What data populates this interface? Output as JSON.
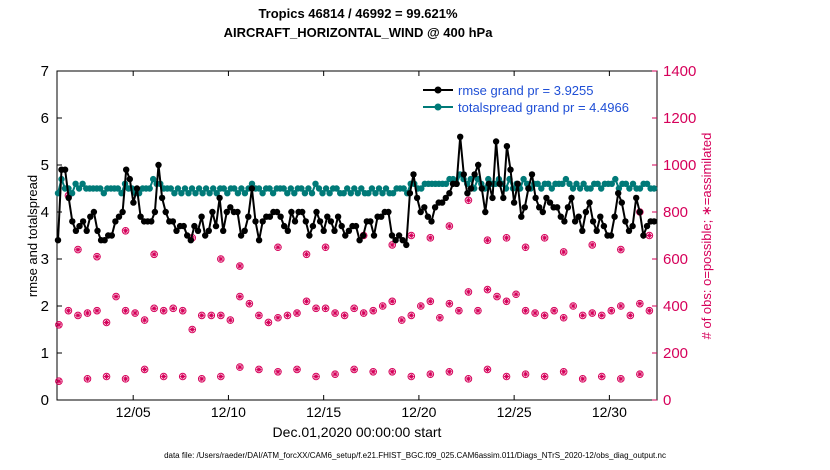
{
  "chart_data": {
    "type": "line",
    "title": "Tropics 46814 / 46992 = 99.621%",
    "subtitle": "AIRCRAFT_HORIZONTAL_WIND @ 400 hPa",
    "xlabel": "Dec.01,2020 00:00:00 start",
    "ylabel": "rmse and totalspread",
    "ylabel_right": "# of obs: o=possible; ∗=assimilated",
    "xlim": [
      1,
      32.5
    ],
    "ylim": [
      0,
      7
    ],
    "ylim_right": [
      0,
      1400
    ],
    "x_ticks": [
      5,
      10,
      15,
      20,
      25,
      30
    ],
    "x_tick_labels": [
      "12/05",
      "12/10",
      "12/15",
      "12/20",
      "12/25",
      "12/30"
    ],
    "y_ticks": [
      0,
      1,
      2,
      3,
      4,
      5,
      6,
      7
    ],
    "y_ticks_right": [
      0,
      200,
      400,
      600,
      800,
      1000,
      1200,
      1400
    ],
    "grid": false,
    "legend_position": "top-right",
    "colors": {
      "rmse": "#000000",
      "spread": "#007a78",
      "obs": "#d6005a"
    },
    "series": [
      {
        "name": "rmse grand pr = 3.9255",
        "y": [
          3.4,
          4.9,
          4.9,
          4.3,
          3.8,
          3.6,
          3.7,
          3.8,
          3.6,
          3.9,
          4.0,
          3.6,
          3.4,
          3.4,
          3.5,
          3.5,
          3.8,
          3.9,
          4.0,
          4.9,
          4.7,
          4.2,
          4.5,
          3.9,
          3.8,
          3.8,
          3.8,
          4.0,
          5.0,
          4.3,
          4.0,
          3.8,
          3.8,
          3.6,
          3.7,
          3.7,
          3.5,
          3.4,
          3.7,
          3.6,
          3.9,
          3.5,
          3.6,
          4.0,
          3.7,
          4.3,
          3.6,
          4.0,
          4.1,
          4.0,
          4.0,
          3.5,
          3.6,
          3.9,
          4.5,
          3.8,
          3.4,
          3.8,
          3.9,
          3.9,
          4.0,
          4.0,
          3.9,
          3.7,
          3.6,
          4.0,
          3.8,
          4.0,
          4.0,
          3.8,
          3.5,
          3.7,
          4.0,
          3.8,
          3.6,
          3.9,
          3.8,
          3.6,
          3.9,
          3.7,
          3.5,
          3.6,
          3.7,
          3.7,
          3.4,
          3.5,
          3.8,
          3.8,
          3.5,
          3.9,
          3.9,
          4.0,
          4.0,
          3.5,
          3.4,
          3.5,
          3.4,
          3.3,
          4.4,
          4.8,
          4.3,
          4.0,
          4.1,
          3.9,
          3.8,
          4.1,
          4.2,
          4.2,
          4.3,
          4.4,
          4.6,
          4.6,
          5.6,
          4.8,
          4.4,
          4.5,
          4.8,
          5.0,
          4.5,
          4.0,
          4.6,
          4.3,
          5.5,
          4.6,
          4.3,
          5.4,
          4.9,
          4.2,
          4.6,
          3.9,
          4.1,
          4.5,
          4.8,
          4.3,
          4.1,
          4.0,
          4.3,
          4.2,
          4.1,
          4.1,
          3.9,
          3.8,
          4.1,
          4.3,
          3.8,
          3.9,
          3.6,
          4.0,
          4.2,
          3.8,
          3.6,
          3.9,
          3.7,
          3.5,
          3.5,
          3.9,
          4.4,
          4.2,
          3.8,
          3.6,
          3.7,
          4.3,
          4.0,
          3.5,
          3.7,
          3.8,
          3.8
        ]
      },
      {
        "name": "totalspread grand pr = 4.4966",
        "y": [
          4.4,
          4.7,
          4.5,
          4.5,
          4.4,
          4.6,
          4.5,
          4.6,
          4.5,
          4.5,
          4.5,
          4.5,
          4.5,
          4.4,
          4.5,
          4.5,
          4.5,
          4.5,
          4.4,
          4.6,
          4.5,
          4.5,
          4.4,
          4.4,
          4.5,
          4.5,
          4.5,
          4.7,
          4.6,
          4.6,
          4.5,
          4.5,
          4.5,
          4.4,
          4.5,
          4.4,
          4.5,
          4.4,
          4.5,
          4.4,
          4.5,
          4.4,
          4.5,
          4.4,
          4.5,
          4.4,
          4.5,
          4.5,
          4.4,
          4.5,
          4.5,
          4.4,
          4.5,
          4.4,
          4.5,
          4.6,
          4.5,
          4.5,
          4.4,
          4.5,
          4.5,
          4.4,
          4.5,
          4.5,
          4.5,
          4.4,
          4.5,
          4.4,
          4.5,
          4.5,
          4.4,
          4.5,
          4.4,
          4.6,
          4.5,
          4.4,
          4.5,
          4.4,
          4.5,
          4.5,
          4.4,
          4.4,
          4.5,
          4.4,
          4.5,
          4.4,
          4.5,
          4.4,
          4.4,
          4.5,
          4.4,
          4.5,
          4.4,
          4.5,
          4.4,
          4.4,
          4.5,
          4.5,
          4.5,
          4.4,
          4.6,
          4.6,
          4.5,
          4.5,
          4.6,
          4.6,
          4.6,
          4.6,
          4.6,
          4.6,
          4.6,
          4.7,
          4.7,
          4.6,
          4.8,
          4.7,
          4.6,
          4.7,
          4.5,
          4.7,
          4.6,
          4.5,
          4.7,
          4.6,
          4.6,
          4.7,
          4.6,
          4.5,
          4.7,
          4.5,
          4.6,
          4.5,
          4.7,
          4.6,
          4.5,
          4.6,
          4.6,
          4.5,
          4.6,
          4.6,
          4.5,
          4.6,
          4.6,
          4.6,
          4.7,
          4.6,
          4.5,
          4.6,
          4.5,
          4.6,
          4.5,
          4.5,
          4.6,
          4.6,
          4.5,
          4.6,
          4.6,
          4.6,
          4.7,
          4.5,
          4.6,
          4.6,
          4.5,
          4.6,
          4.5,
          4.5,
          4.6,
          4.6,
          4.5,
          4.5
        ]
      }
    ],
    "obs_possible": {
      "x": [
        1.1,
        1.6,
        2.1,
        2.6,
        3.1,
        3.6,
        4.1,
        4.6,
        5.1,
        5.6,
        6.1,
        6.6,
        7.1,
        7.6,
        8.1,
        8.6,
        9.1,
        9.6,
        10.1,
        10.6,
        11.1,
        11.6,
        12.1,
        12.6,
        13.1,
        13.6,
        14.1,
        14.6,
        15.1,
        15.6,
        16.1,
        16.6,
        17.1,
        17.6,
        18.1,
        18.6,
        19.1,
        19.6,
        20.1,
        20.6,
        21.1,
        21.6,
        22.1,
        22.6,
        23.1,
        23.6,
        24.1,
        24.6,
        25.1,
        25.6,
        26.1,
        26.6,
        27.1,
        27.6,
        28.1,
        28.6,
        29.1,
        29.6,
        30.1,
        30.6,
        31.1,
        31.6,
        32.1
      ],
      "y": [
        320,
        380,
        360,
        370,
        380,
        330,
        440,
        380,
        370,
        340,
        390,
        380,
        390,
        380,
        300,
        360,
        360,
        360,
        340,
        440,
        410,
        360,
        330,
        350,
        360,
        370,
        420,
        390,
        390,
        370,
        360,
        390,
        370,
        380,
        400,
        420,
        340,
        360,
        400,
        420,
        350,
        410,
        380,
        460,
        380,
        470,
        440,
        420,
        450,
        380,
        370,
        360,
        380,
        350,
        400,
        360,
        370,
        360,
        380,
        400,
        360,
        410,
        380
      ]
    },
    "obs_low": {
      "x": [
        1.1,
        2.6,
        3.6,
        4.6,
        5.6,
        6.6,
        7.6,
        8.6,
        9.6,
        10.6,
        11.6,
        12.6,
        13.6,
        14.6,
        15.6,
        16.6,
        17.6,
        18.6,
        19.6,
        20.6,
        21.6,
        22.6,
        23.6,
        24.6,
        25.6,
        26.6,
        27.6,
        28.6,
        29.6,
        30.6,
        31.6,
        32.6
      ],
      "y": [
        80,
        90,
        100,
        90,
        130,
        100,
        100,
        90,
        100,
        140,
        130,
        120,
        130,
        100,
        110,
        130,
        120,
        120,
        100,
        110,
        120,
        90,
        130,
        100,
        110,
        100,
        120,
        90,
        100,
        90,
        110,
        0
      ]
    },
    "obs_upper": {
      "x": [
        1.6,
        2.1,
        3.1,
        4.6,
        6.1,
        8.1,
        9.6,
        10.6,
        12.6,
        14.1,
        15.1,
        17.1,
        18.6,
        19.6,
        20.6,
        21.6,
        22.6,
        23.6,
        24.6,
        25.6,
        26.6,
        27.6,
        29.1,
        30.6,
        31.6,
        32.1
      ],
      "y": [
        870,
        640,
        610,
        720,
        620,
        690,
        600,
        570,
        650,
        620,
        650,
        700,
        660,
        700,
        690,
        740,
        850,
        680,
        690,
        650,
        690,
        630,
        660,
        640,
        800,
        700
      ]
    }
  },
  "footer": "data file: /Users/raeder/DAI/ATM_forcXX/CAM6_setup/f.e21.FHIST_BGC.f09_025.CAM6assim.011/Diags_NTrS_2020-12/obs_diag_output.nc"
}
